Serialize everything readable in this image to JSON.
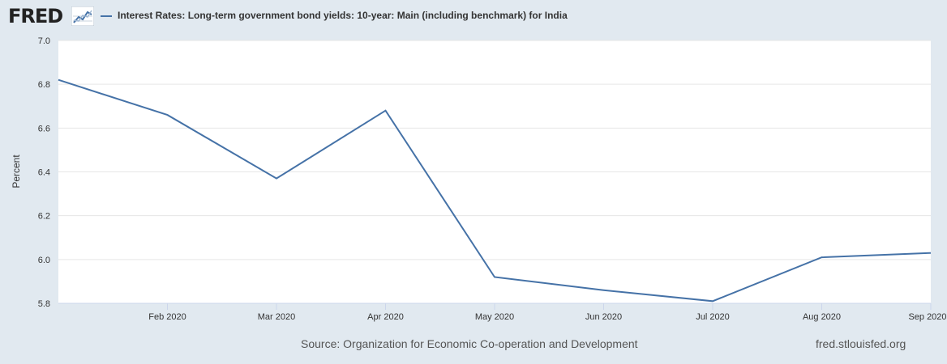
{
  "header": {
    "logo_text": "FRED",
    "series_title": "Interest Rates: Long-term government bond yields: 10-year: Main (including benchmark) for India"
  },
  "colors": {
    "series": "#4572a7",
    "background": "#e1e9f0",
    "plot_background": "#ffffff",
    "grid": "#e6e6e6"
  },
  "icons": {
    "logo_graph": "line-graph-icon"
  },
  "chart_data": {
    "type": "line",
    "title": "",
    "xlabel": "",
    "ylabel": "Percent",
    "x": [
      "2020-01-01",
      "2020-02-01",
      "2020-03-01",
      "2020-04-01",
      "2020-05-01",
      "2020-06-01",
      "2020-07-01",
      "2020-08-01",
      "2020-09-01"
    ],
    "x_tick_labels": [
      "Feb 2020",
      "Mar 2020",
      "Apr 2020",
      "May 2020",
      "Jun 2020",
      "Jul 2020",
      "Aug 2020",
      "Sep 2020"
    ],
    "y_ticks": [
      "5.8",
      "6.0",
      "6.2",
      "6.4",
      "6.6",
      "6.8",
      "7.0"
    ],
    "ylim": [
      5.8,
      7.0
    ],
    "grid": true,
    "legend": "top-left",
    "series": [
      {
        "name": "Interest Rates: Long-term government bond yields: 10-year: Main (including benchmark) for India",
        "values": [
          6.82,
          6.66,
          6.37,
          6.68,
          5.92,
          5.86,
          5.81,
          6.01,
          6.03
        ]
      }
    ]
  },
  "footer": {
    "source": "Source: Organization for Economic Co-operation and Development",
    "site": "fred.stlouisfed.org"
  }
}
